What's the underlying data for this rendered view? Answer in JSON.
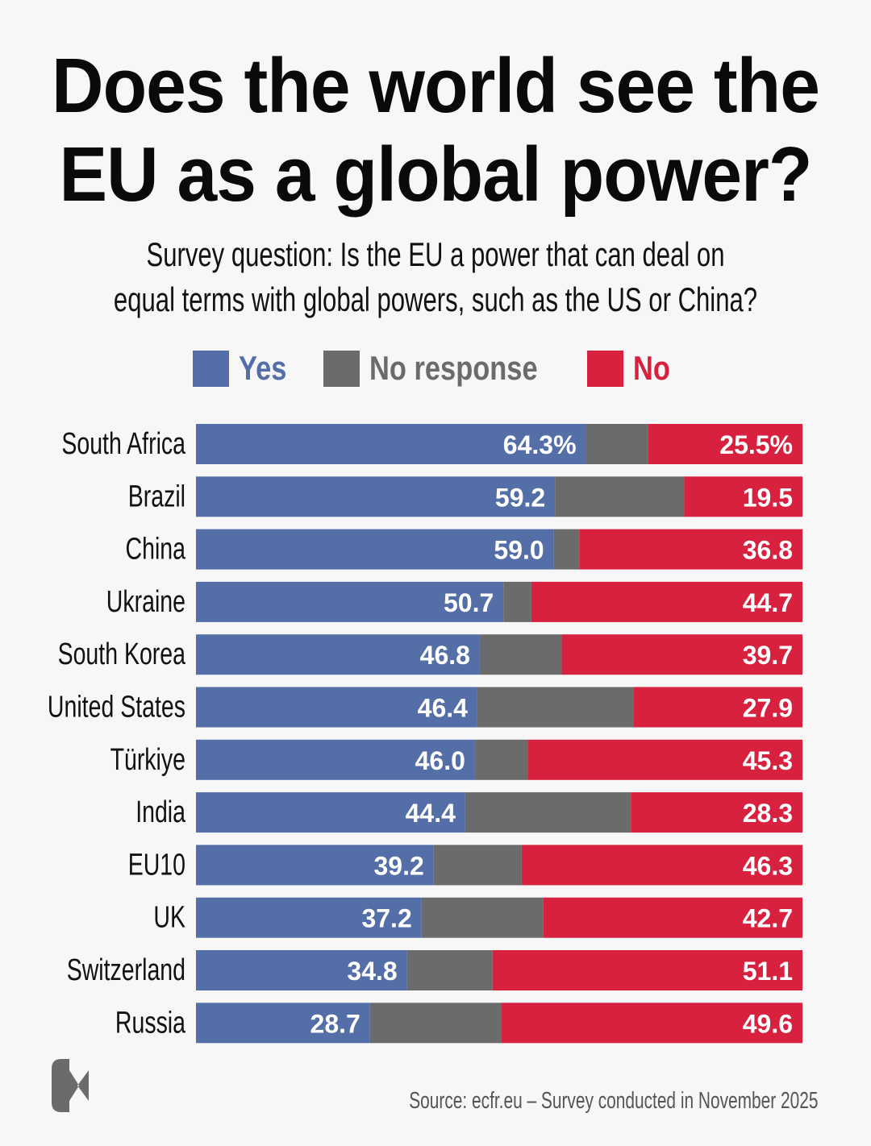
{
  "title": [
    "Does the world see the",
    "EU as a global power?"
  ],
  "subtitle": [
    "Survey question: Is the EU a power that can deal on",
    "equal terms with global powers, such as the US or China?"
  ],
  "source": "Source: ecfr.eu – Survey conducted in November 2025",
  "logo_text": "E",
  "chart_data": {
    "type": "bar",
    "orientation": "horizontal",
    "stacked": true,
    "unit": "%",
    "xlim": [
      0,
      100
    ],
    "legend": {
      "placement": "top",
      "entries": [
        "Yes",
        "No response",
        "No"
      ]
    },
    "colors": {
      "Yes": "#546ea8",
      "No response": "#6b6b6b",
      "No": "#d7213f"
    },
    "categories": [
      "South Africa",
      "Brazil",
      "China",
      "Ukraine",
      "South Korea",
      "United States",
      "Türkiye",
      "India",
      "EU10",
      "UK",
      "Switzerland",
      "Russia"
    ],
    "series": [
      {
        "name": "Yes",
        "values": [
          64.3,
          59.2,
          59.0,
          50.7,
          46.8,
          46.4,
          46.0,
          44.4,
          39.2,
          37.2,
          34.8,
          28.7
        ]
      },
      {
        "name": "No response",
        "values": [
          10.2,
          21.3,
          4.2,
          4.6,
          13.5,
          25.7,
          8.7,
          27.3,
          14.5,
          20.1,
          14.1,
          21.7
        ]
      },
      {
        "name": "No",
        "values": [
          25.5,
          19.5,
          36.8,
          44.7,
          39.7,
          27.9,
          45.3,
          28.3,
          46.3,
          42.7,
          51.1,
          49.6
        ]
      }
    ],
    "data_labels": {
      "Yes": [
        "64.3%",
        "59.2",
        "59.0",
        "50.7",
        "46.8",
        "46.4",
        "46.0",
        "44.4",
        "39.2",
        "37.2",
        "34.8",
        "28.7"
      ],
      "No": [
        "25.5%",
        "19.5",
        "36.8",
        "44.7",
        "39.7",
        "27.9",
        "45.3",
        "28.3",
        "46.3",
        "42.7",
        "51.1",
        "49.6"
      ]
    },
    "grid": false
  }
}
